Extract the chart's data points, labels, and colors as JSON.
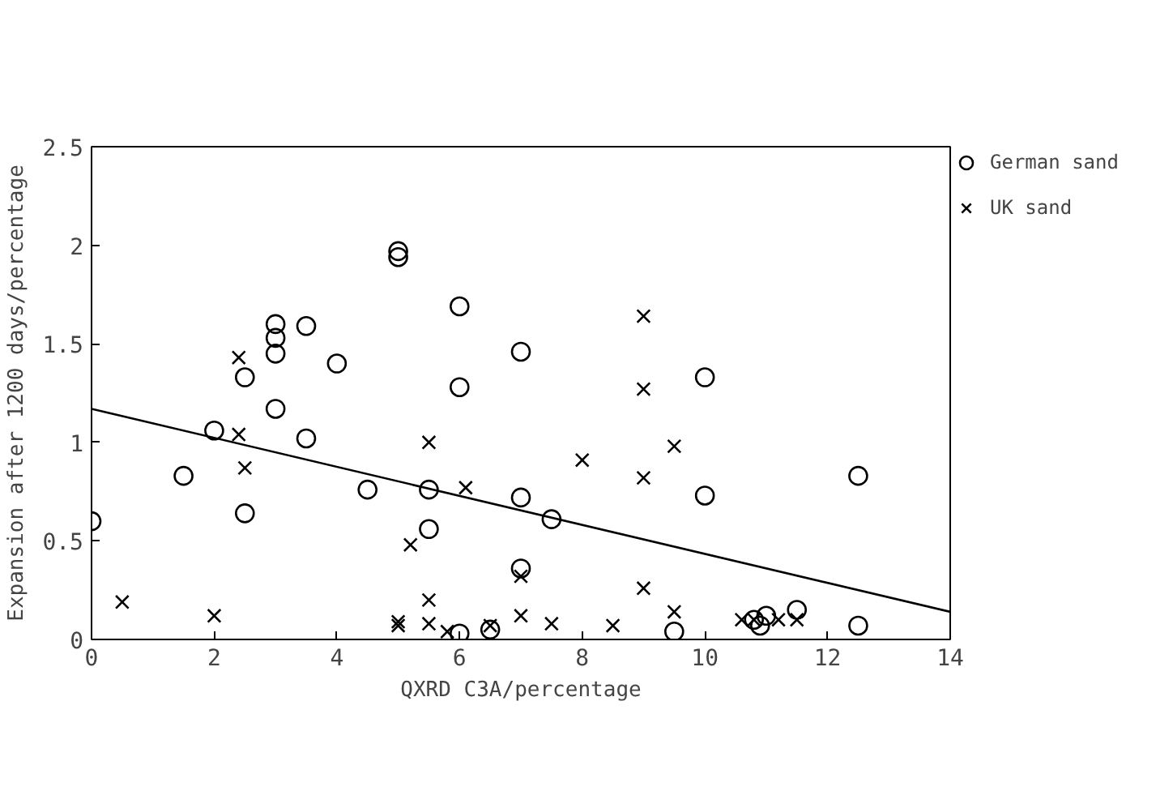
{
  "chart_data": {
    "type": "scatter",
    "xlabel": "QXRD C3A/percentage",
    "ylabel": "Expansion after 1200 days/percentage",
    "xlim": [
      0,
      14
    ],
    "ylim": [
      0,
      2.5
    ],
    "xticks": [
      0,
      2,
      4,
      6,
      8,
      10,
      12,
      14
    ],
    "yticks": [
      0,
      0.5,
      1,
      1.5,
      2,
      2.5
    ],
    "grid": false,
    "legend": "top right",
    "series": [
      {
        "name": "German sand",
        "color": "#000000",
        "marker": "circle",
        "x": [
          0,
          1.5,
          2,
          2.5,
          2.5,
          3,
          3,
          3,
          3,
          3.5,
          3.5,
          4,
          4.5,
          5,
          5,
          5.5,
          5.5,
          6,
          6,
          6,
          6.5,
          7,
          7,
          7,
          7.5,
          9.5,
          10,
          10,
          10.8,
          10.9,
          11,
          11.5,
          12.5,
          12.5
        ],
        "values": [
          0.6,
          0.83,
          1.06,
          1.33,
          0.64,
          1.6,
          1.53,
          1.45,
          1.17,
          1.59,
          1.02,
          1.4,
          0.76,
          1.97,
          1.94,
          0.76,
          0.56,
          1.69,
          1.28,
          0.03,
          0.05,
          1.46,
          0.72,
          0.36,
          0.61,
          0.04,
          1.33,
          0.73,
          0.1,
          0.07,
          0.12,
          0.15,
          0.83,
          0.07
        ]
      },
      {
        "name": "UK sand",
        "color": "#000000",
        "marker": "cross",
        "x": [
          0.5,
          2,
          2.4,
          2.4,
          2.5,
          5,
          5,
          5.2,
          5.5,
          5.5,
          5.5,
          5.8,
          6.1,
          6.5,
          7,
          7,
          7.5,
          8,
          8.5,
          9,
          9,
          9,
          9,
          9.5,
          9.5,
          10.6,
          10.8,
          11.2,
          11.5
        ],
        "values": [
          0.19,
          0.12,
          1.43,
          1.04,
          0.87,
          0.09,
          0.07,
          0.48,
          1.0,
          0.2,
          0.08,
          0.04,
          0.77,
          0.07,
          0.32,
          0.12,
          0.08,
          0.91,
          0.07,
          1.64,
          1.27,
          0.82,
          0.26,
          0.98,
          0.14,
          0.1,
          0.1,
          0.1,
          0.1
        ]
      },
      {
        "type": "line",
        "color": "#000000",
        "marker": "none",
        "line_style": "solid",
        "x": [
          0,
          14
        ],
        "values": [
          1.17,
          0.14
        ]
      }
    ]
  }
}
